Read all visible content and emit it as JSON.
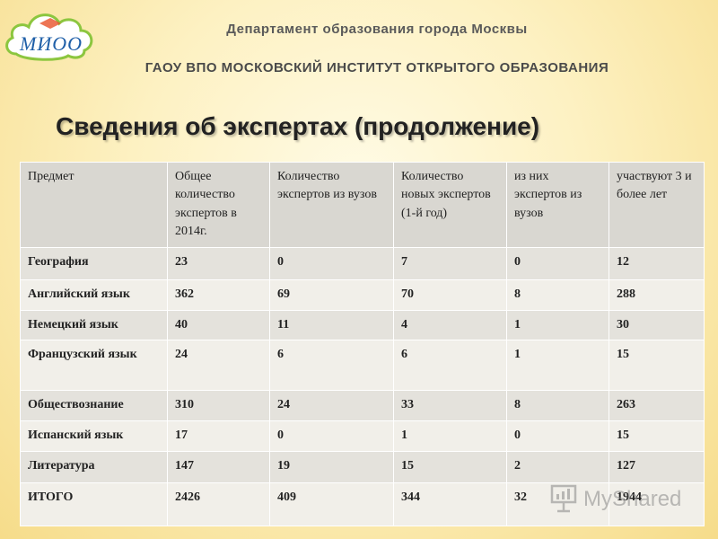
{
  "header": {
    "logo_text": "МИОО",
    "department": "Департамент образования города Москвы",
    "institute": "ГАОУ ВПО МОСКОВСКИЙ ИНСТИТУТ ОТКРЫТОГО ОБРАЗОВАНИЯ"
  },
  "title": "Сведения об экспертах (продолжение)",
  "table": {
    "headers": [
      "Предмет",
      "Общее количество экспертов в 2014г.",
      "Количество экспертов из вузов",
      "Количество новых экспертов (1-й год)",
      "из них экспертов из вузов",
      "участвуют 3 и более лет"
    ],
    "rows": [
      [
        "География",
        "23",
        "0",
        "7",
        "0",
        "12"
      ],
      [
        "Английский язык",
        "362",
        "69",
        "70",
        "8",
        "288"
      ],
      [
        "Немецкий язык",
        "40",
        "11",
        "4",
        "1",
        "30"
      ],
      [
        "Французский язык",
        "24",
        "6",
        "6",
        "1",
        "15"
      ],
      [
        "Обществознание",
        "310",
        "24",
        "33",
        "8",
        "263"
      ],
      [
        "Испанский язык",
        "17",
        "0",
        "1",
        "0",
        "15"
      ],
      [
        "Литература",
        "147",
        "19",
        "15",
        "2",
        "127"
      ],
      [
        "ИТОГО",
        "2426",
        "409",
        "344",
        "32",
        "1944"
      ]
    ]
  },
  "watermark": {
    "text": "MyShared",
    "icon": "presentation-icon"
  }
}
